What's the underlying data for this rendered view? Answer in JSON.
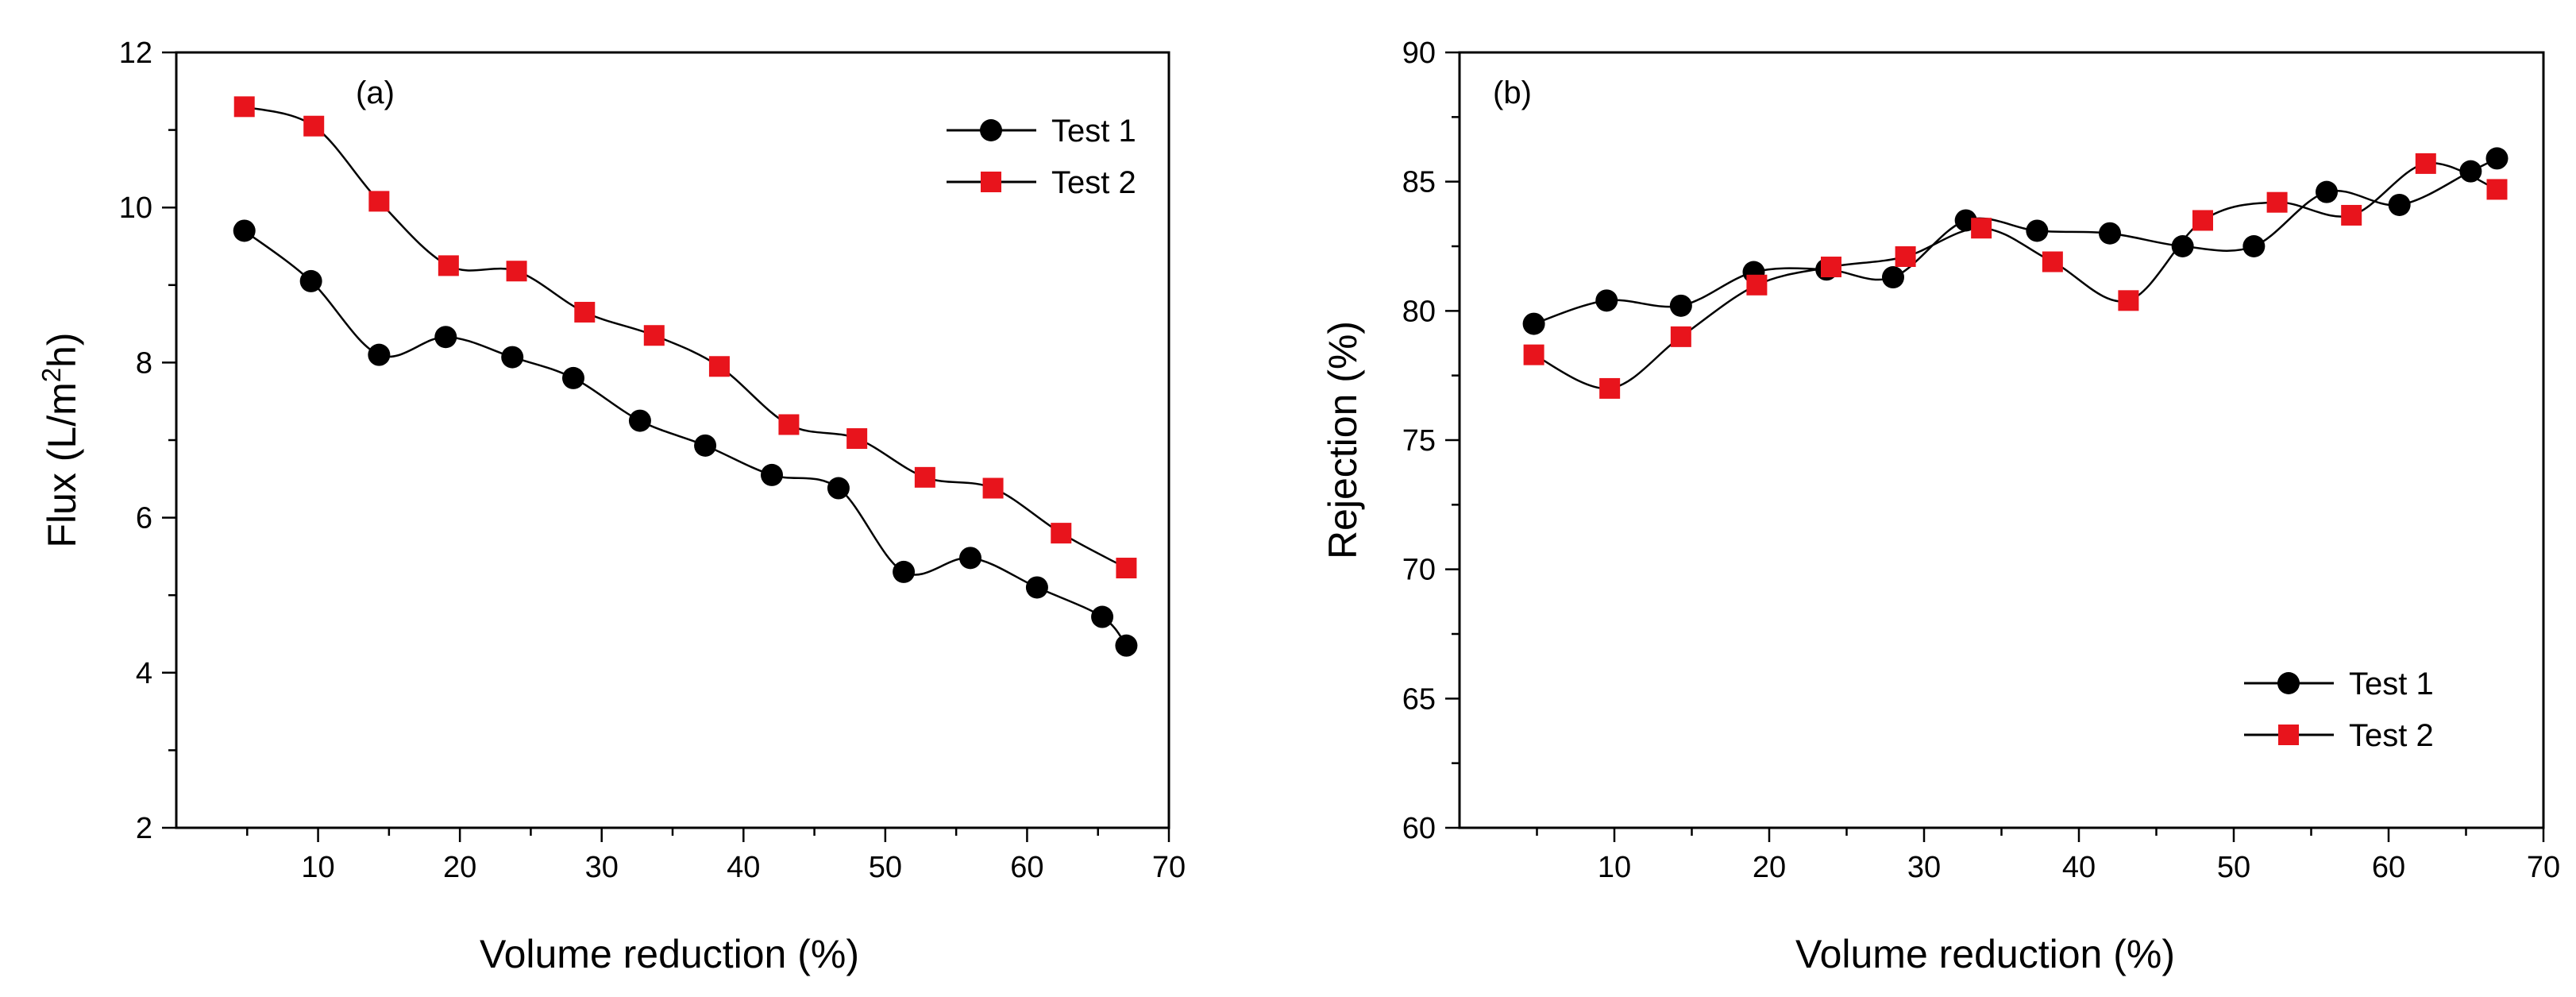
{
  "chart_data": [
    {
      "type": "line",
      "panel_label": "(a)",
      "xlabel": "Volume reduction (%)",
      "ylabel_main": "Flux (L/m",
      "ylabel_sup": "2",
      "ylabel_tail": "h)",
      "xlim": [
        0,
        70
      ],
      "ylim": [
        2,
        12
      ],
      "xticks": [
        10,
        20,
        30,
        40,
        50,
        60,
        70
      ],
      "yticks": [
        2,
        4,
        6,
        8,
        10,
        12
      ],
      "xtick_labels": [
        "10",
        "20",
        "30",
        "40",
        "50",
        "60",
        "70"
      ],
      "ytick_labels": [
        "2",
        "4",
        "6",
        "8",
        "10",
        "12"
      ],
      "legend_position": "top-right",
      "series": [
        {
          "name": "Test 1",
          "marker": "circle",
          "color": "#000000",
          "x": [
            4.8,
            9.5,
            14.3,
            19.0,
            23.7,
            28.0,
            32.7,
            37.3,
            42.0,
            46.7,
            51.3,
            56.0,
            60.7,
            65.3,
            67.0
          ],
          "y": [
            9.7,
            9.05,
            8.1,
            8.33,
            8.07,
            7.8,
            7.25,
            6.93,
            6.55,
            6.38,
            5.3,
            5.48,
            5.1,
            4.72,
            4.35
          ]
        },
        {
          "name": "Test 2",
          "marker": "square",
          "color": "#e8141c",
          "x": [
            4.8,
            9.7,
            14.3,
            19.2,
            24.0,
            28.8,
            33.7,
            38.3,
            43.2,
            48.0,
            52.8,
            57.6,
            62.4,
            67.0
          ],
          "y": [
            11.3,
            11.05,
            10.08,
            9.25,
            9.18,
            8.65,
            8.35,
            7.95,
            7.2,
            7.02,
            6.52,
            6.38,
            5.8,
            5.35
          ]
        }
      ]
    },
    {
      "type": "line",
      "panel_label": "(b)",
      "xlabel": "Volume reduction (%)",
      "ylabel": "Rejection (%)",
      "xlim": [
        0,
        70
      ],
      "ylim": [
        60,
        90
      ],
      "xticks": [
        10,
        20,
        30,
        40,
        50,
        60,
        70
      ],
      "yticks": [
        60,
        65,
        70,
        75,
        80,
        85,
        90
      ],
      "xtick_labels": [
        "10",
        "20",
        "30",
        "40",
        "50",
        "60",
        "70"
      ],
      "ytick_labels": [
        "60",
        "65",
        "70",
        "75",
        "80",
        "85",
        "90"
      ],
      "legend_position": "bottom-right",
      "series": [
        {
          "name": "Test 1",
          "marker": "circle",
          "color": "#000000",
          "x": [
            4.8,
            9.5,
            14.3,
            19.0,
            23.7,
            28.0,
            32.7,
            37.3,
            42.0,
            46.7,
            51.3,
            56.0,
            60.7,
            65.3,
            67.0
          ],
          "y": [
            79.5,
            80.4,
            80.2,
            81.5,
            81.6,
            81.3,
            83.5,
            83.1,
            83.0,
            82.5,
            82.5,
            84.6,
            84.1,
            85.4,
            85.9
          ]
        },
        {
          "name": "Test 2",
          "marker": "square",
          "color": "#e8141c",
          "x": [
            4.8,
            9.7,
            14.3,
            19.2,
            24.0,
            28.8,
            33.7,
            38.3,
            43.2,
            48.0,
            52.8,
            57.6,
            62.4,
            67.0
          ],
          "y": [
            78.3,
            77.0,
            79.0,
            81.0,
            81.7,
            82.1,
            83.2,
            81.9,
            80.4,
            83.5,
            84.2,
            83.7,
            85.7,
            84.7
          ]
        }
      ]
    }
  ]
}
